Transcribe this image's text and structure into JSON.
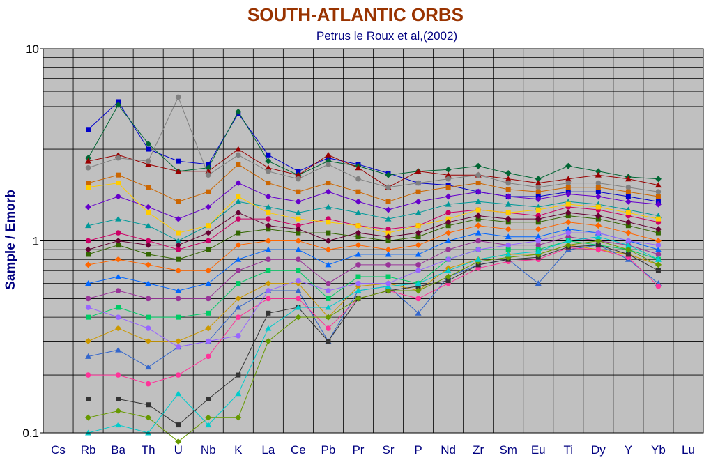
{
  "chart_data": {
    "type": "line",
    "title": "SOUTH-ATLANTIC ORBS",
    "subtitle": "Petrus le Roux et al,(2002)",
    "ylabel": "Sample / Emorb",
    "xlabel": "",
    "yscale": "log",
    "ylim": [
      0.1,
      10
    ],
    "yticks": [
      "10",
      "1",
      "0.1"
    ],
    "grid": true,
    "categories": [
      "Cs",
      "Rb",
      "Ba",
      "Th",
      "U",
      "Nb",
      "K",
      "La",
      "Ce",
      "Pb",
      "Pr",
      "Sr",
      "P",
      "Nd",
      "Zr",
      "Sm",
      "Eu",
      "Ti",
      "Dy",
      "Y",
      "Yb",
      "Lu"
    ],
    "series": [
      {
        "values": [
          null,
          3.8,
          5.3,
          3.0,
          2.6,
          2.5,
          4.6,
          2.8,
          2.3,
          2.7,
          2.5,
          2.25,
          2.0,
          1.95,
          1.8,
          1.7,
          1.7,
          1.8,
          1.8,
          1.7,
          1.6,
          null
        ]
      },
      {
        "values": [
          null,
          2.7,
          5.1,
          3.2,
          2.3,
          2.4,
          4.7,
          2.6,
          2.2,
          2.6,
          2.45,
          2.2,
          2.3,
          2.35,
          2.45,
          2.25,
          2.1,
          2.45,
          2.3,
          2.15,
          2.1,
          null
        ]
      },
      {
        "values": [
          null,
          2.6,
          2.8,
          2.5,
          2.3,
          2.3,
          3.0,
          2.4,
          2.2,
          2.8,
          2.4,
          1.9,
          2.3,
          2.2,
          2.2,
          2.1,
          2.0,
          2.1,
          2.2,
          2.1,
          1.95,
          null
        ]
      },
      {
        "values": [
          null,
          2.4,
          2.7,
          2.6,
          5.6,
          2.2,
          2.8,
          2.3,
          2.1,
          2.5,
          2.1,
          1.9,
          2.0,
          2.1,
          2.2,
          2.0,
          1.9,
          2.0,
          2.0,
          1.9,
          1.8,
          null
        ]
      },
      {
        "values": [
          null,
          2.0,
          2.2,
          1.9,
          1.6,
          1.8,
          2.5,
          2.0,
          1.8,
          2.0,
          1.8,
          1.6,
          1.8,
          1.9,
          2.0,
          1.85,
          1.8,
          1.9,
          1.9,
          1.8,
          1.7,
          null
        ]
      },
      {
        "values": [
          null,
          1.5,
          1.7,
          1.5,
          1.3,
          1.5,
          2.0,
          1.7,
          1.6,
          1.8,
          1.6,
          1.45,
          1.6,
          1.7,
          1.8,
          1.7,
          1.65,
          1.75,
          1.7,
          1.6,
          1.55,
          null
        ]
      },
      {
        "values": [
          null,
          1.2,
          1.3,
          1.2,
          1.0,
          1.2,
          1.6,
          1.5,
          1.4,
          1.5,
          1.4,
          1.3,
          1.4,
          1.55,
          1.6,
          1.55,
          1.5,
          1.6,
          1.55,
          1.45,
          1.35,
          null
        ]
      },
      {
        "values": [
          null,
          1.0,
          1.1,
          1.0,
          0.9,
          1.0,
          1.3,
          1.3,
          1.2,
          1.3,
          1.2,
          1.15,
          1.2,
          1.4,
          1.45,
          1.4,
          1.35,
          1.5,
          1.45,
          1.35,
          1.25,
          null
        ]
      },
      {
        "values": [
          null,
          0.85,
          0.95,
          0.85,
          0.8,
          0.9,
          1.1,
          1.15,
          1.1,
          1.1,
          1.05,
          1.0,
          1.05,
          1.2,
          1.3,
          1.25,
          1.25,
          1.35,
          1.3,
          1.2,
          1.1,
          null
        ]
      },
      {
        "values": [
          null,
          0.75,
          0.8,
          0.75,
          0.7,
          0.7,
          0.95,
          1.0,
          1.0,
          0.9,
          0.95,
          0.9,
          0.95,
          1.1,
          1.2,
          1.15,
          1.15,
          1.25,
          1.2,
          1.1,
          1.0,
          null
        ]
      },
      {
        "values": [
          null,
          0.6,
          0.65,
          0.6,
          0.55,
          0.6,
          0.8,
          0.9,
          0.9,
          0.75,
          0.85,
          0.85,
          0.85,
          1.0,
          1.1,
          1.05,
          1.05,
          1.15,
          1.1,
          1.0,
          0.9,
          null
        ]
      },
      {
        "values": [
          null,
          0.5,
          0.55,
          0.5,
          0.5,
          0.5,
          0.7,
          0.8,
          0.8,
          0.6,
          0.75,
          0.75,
          0.75,
          0.9,
          1.0,
          0.95,
          0.95,
          1.05,
          1.0,
          0.95,
          0.85,
          null
        ]
      },
      {
        "values": [
          null,
          0.4,
          0.45,
          0.4,
          0.4,
          0.42,
          0.6,
          0.7,
          0.7,
          0.5,
          0.65,
          0.65,
          0.6,
          0.8,
          0.9,
          0.9,
          0.9,
          1.0,
          0.95,
          0.9,
          0.8,
          null
        ]
      },
      {
        "values": [
          null,
          0.3,
          0.35,
          0.3,
          0.3,
          0.35,
          0.5,
          0.6,
          0.6,
          0.4,
          0.58,
          0.6,
          0.55,
          0.72,
          0.8,
          0.85,
          0.85,
          0.95,
          0.9,
          0.85,
          0.75,
          null
        ]
      },
      {
        "values": [
          null,
          0.25,
          0.27,
          0.22,
          0.28,
          0.3,
          0.45,
          0.55,
          0.55,
          0.3,
          0.55,
          0.58,
          0.42,
          0.65,
          0.75,
          0.8,
          0.6,
          0.9,
          0.95,
          0.8,
          0.6,
          null
        ]
      },
      {
        "values": [
          null,
          0.2,
          0.2,
          0.18,
          0.2,
          0.25,
          0.4,
          0.5,
          0.5,
          0.35,
          0.5,
          0.55,
          0.5,
          0.6,
          0.72,
          0.78,
          0.8,
          0.92,
          0.9,
          0.82,
          0.58,
          null
        ]
      },
      {
        "values": [
          null,
          0.15,
          0.15,
          0.14,
          0.11,
          0.15,
          0.2,
          0.42,
          0.45,
          0.3,
          0.5,
          0.55,
          0.58,
          0.62,
          0.75,
          0.8,
          0.82,
          0.93,
          0.95,
          0.85,
          0.7,
          null
        ]
      },
      {
        "values": [
          null,
          0.12,
          0.13,
          0.12,
          0.09,
          0.12,
          0.12,
          0.3,
          0.4,
          0.4,
          0.5,
          0.55,
          0.55,
          0.65,
          0.78,
          0.82,
          0.85,
          0.95,
          1.0,
          0.9,
          0.75,
          null
        ]
      },
      {
        "values": [
          null,
          0.1,
          0.11,
          0.1,
          0.16,
          0.11,
          0.16,
          0.35,
          0.45,
          0.45,
          0.55,
          0.58,
          0.6,
          0.7,
          0.8,
          0.85,
          0.88,
          1.0,
          1.05,
          0.95,
          0.8,
          null
        ]
      },
      {
        "values": [
          null,
          0.45,
          0.4,
          0.35,
          0.28,
          0.3,
          0.32,
          0.55,
          0.62,
          0.55,
          0.6,
          0.6,
          0.7,
          0.8,
          0.9,
          0.95,
          1.0,
          1.1,
          1.1,
          1.0,
          0.95,
          null
        ]
      },
      {
        "values": [
          null,
          1.9,
          2.0,
          1.4,
          1.1,
          1.2,
          1.7,
          1.4,
          1.3,
          1.25,
          1.2,
          1.1,
          1.2,
          1.3,
          1.45,
          1.4,
          1.45,
          1.55,
          1.5,
          1.4,
          1.3,
          null
        ]
      },
      {
        "values": [
          null,
          0.9,
          1.0,
          0.95,
          0.95,
          1.1,
          1.4,
          1.2,
          1.15,
          1.0,
          1.1,
          1.05,
          1.1,
          1.25,
          1.35,
          1.3,
          1.3,
          1.4,
          1.35,
          1.25,
          1.15,
          null
        ]
      }
    ],
    "colors": [
      "#0000cc",
      "#006633",
      "#990000",
      "#808080",
      "#cc6600",
      "#6600cc",
      "#009999",
      "#cc0066",
      "#336600",
      "#ff6600",
      "#0066ff",
      "#993399",
      "#00cc66",
      "#cc9900",
      "#3366cc",
      "#ff3399",
      "#333333",
      "#669900",
      "#00cccc",
      "#9966ff",
      "#ffcc00",
      "#660033"
    ]
  }
}
